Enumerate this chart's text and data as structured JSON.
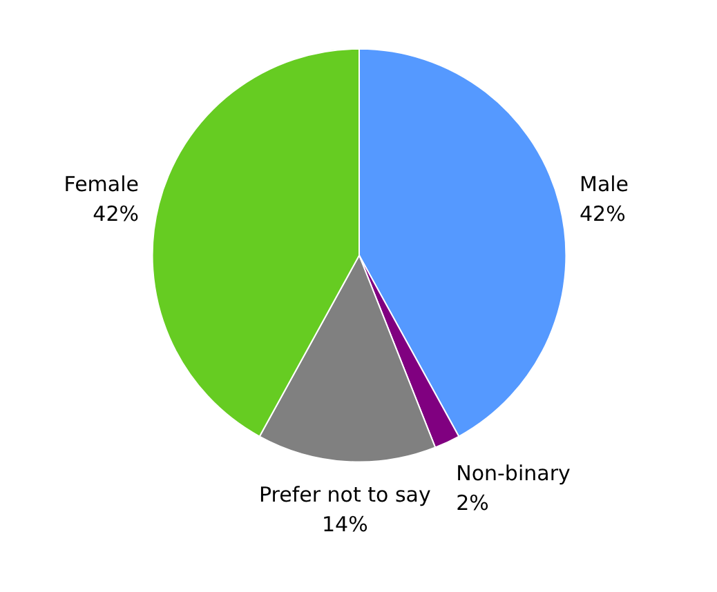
{
  "chart_data": {
    "type": "pie",
    "categories": [
      "Male",
      "Non-binary",
      "Prefer not to say",
      "Female"
    ],
    "values": [
      42,
      2,
      14,
      42
    ],
    "value_labels": [
      "42%",
      "2%",
      "14%",
      "42%"
    ],
    "colors": [
      "#5599ff",
      "#800080",
      "#808080",
      "#66cc22"
    ]
  }
}
